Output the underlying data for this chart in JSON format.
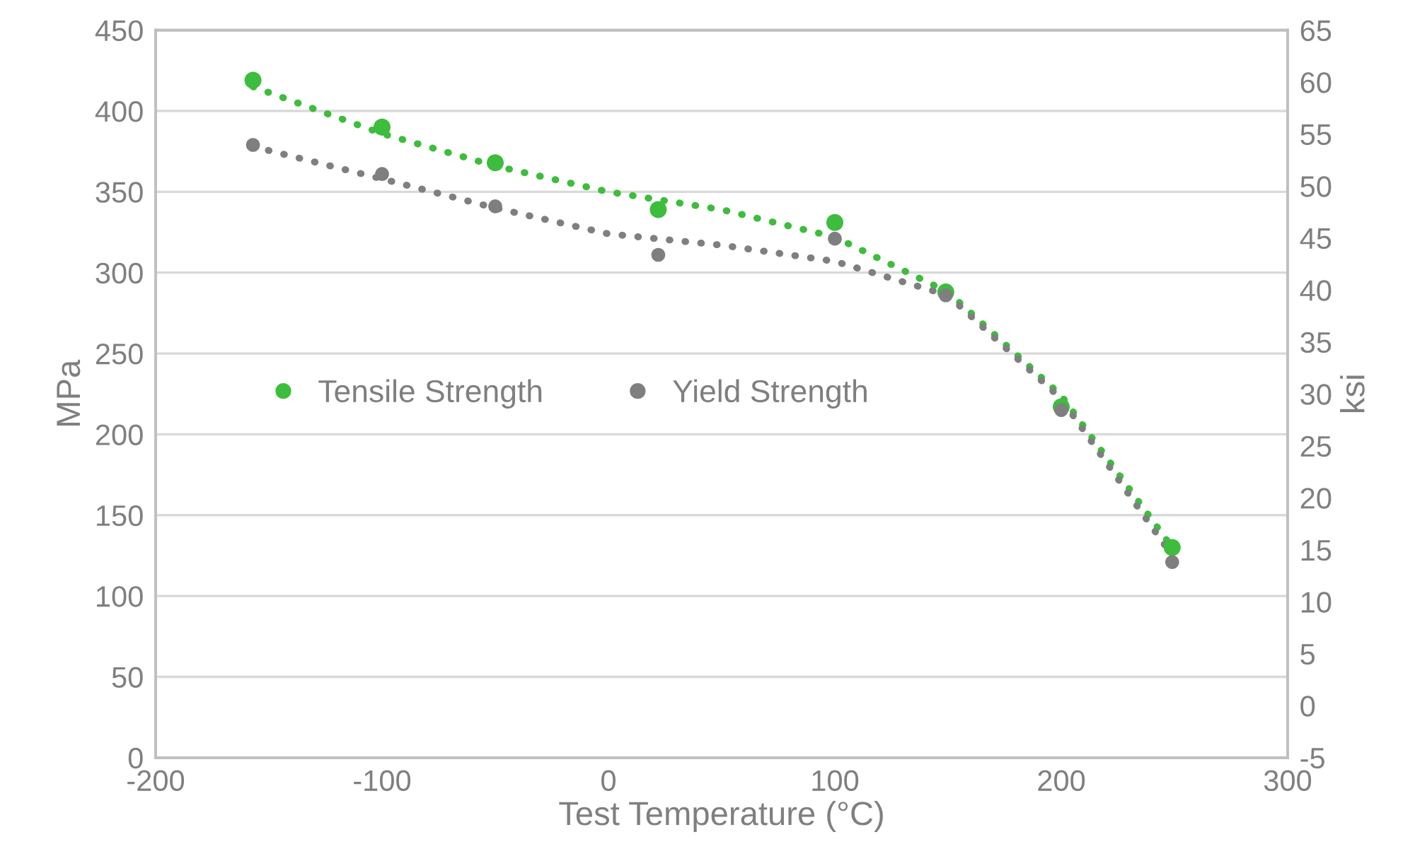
{
  "chart_data": {
    "type": "scatter",
    "xlabel": "Test Temperature (°C)",
    "ylabel": "MPa",
    "y2label": "ksi",
    "x": [
      -157,
      -100,
      -50,
      22,
      100,
      149,
      200,
      249
    ],
    "series": [
      {
        "name": "Tensile Strength",
        "color": "#3dbd3d",
        "values": [
          419,
          390,
          368,
          339,
          331,
          288,
          217,
          130
        ]
      },
      {
        "name": "Yield Strength",
        "color": "#7f7f7f",
        "values": [
          379,
          361,
          341,
          311,
          321,
          286,
          215,
          121
        ]
      },
      {
        "type": "line",
        "marker": "none",
        "color": "#3dbd3d",
        "line_style": "dotted",
        "x": [
          -157,
          -100,
          -50,
          0,
          50,
          100,
          150,
          200,
          249
        ],
        "values": [
          415,
          386,
          366,
          350,
          339,
          322,
          288,
          224,
          130
        ]
      },
      {
        "type": "line",
        "marker": "none",
        "color": "#7f7f7f",
        "line_style": "dotted",
        "x": [
          -157,
          -100,
          -50,
          0,
          50,
          100,
          150,
          200,
          249
        ],
        "values": [
          378,
          358,
          340,
          324,
          317,
          307,
          286,
          222,
          125
        ]
      }
    ],
    "xlim": [
      -200,
      300
    ],
    "xticks": [
      -200,
      -100,
      0,
      100,
      200,
      300
    ],
    "ylim": [
      0,
      450
    ],
    "yticks": [
      0,
      50,
      100,
      150,
      200,
      250,
      300,
      350,
      400,
      450
    ],
    "y2lim": [
      -5,
      65
    ],
    "y2ticks": [
      -5,
      0,
      5,
      10,
      15,
      20,
      25,
      30,
      35,
      40,
      45,
      50,
      55,
      60,
      65
    ],
    "grid": "y",
    "legend": "center left",
    "marker": "circle"
  }
}
